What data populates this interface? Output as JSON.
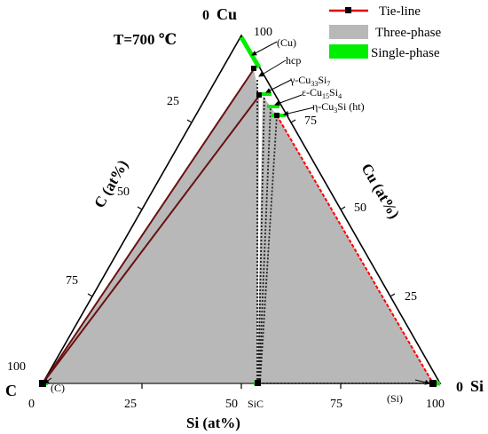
{
  "temperature_label": "T=700 ℃",
  "corners": {
    "cu": {
      "zero": "0",
      "name": "Cu"
    },
    "c": {
      "name": "C"
    },
    "si": {
      "zero": "0",
      "name": "Si"
    }
  },
  "axes": {
    "c_axis": {
      "label": "C (at%)",
      "ticks": [
        "25",
        "50",
        "75",
        "100"
      ]
    },
    "cu_axis": {
      "label": "Cu (at%)",
      "ticks": [
        "100",
        "75",
        "50",
        "25"
      ]
    },
    "si_axis": {
      "label": "Si (at%)",
      "ticks": [
        "0",
        "25",
        "50",
        "75",
        "100"
      ]
    }
  },
  "legend": {
    "tie_line": "Tie-line",
    "three_phase": "Three-phase",
    "single_phase": "Single-phase",
    "colors": {
      "tie_line": "#dd0000",
      "three_phase": "#b8b8b8",
      "single_phase": "#00ee00"
    }
  },
  "phase_labels": {
    "cu": "(Cu)",
    "hcp": "hcp",
    "gamma": {
      "base": "γ-Cu",
      "sub1": "33",
      "mid": "Si",
      "sub2": "7"
    },
    "epsilon": {
      "base": "ε-Cu",
      "sub1": "15",
      "mid": "Si",
      "sub2": "4"
    },
    "eta": {
      "base": "η-Cu",
      "sub1": "3",
      "tail": "Si (ht)"
    },
    "graphite": "(C)",
    "sic": "SiC",
    "si": "(Si)"
  }
}
